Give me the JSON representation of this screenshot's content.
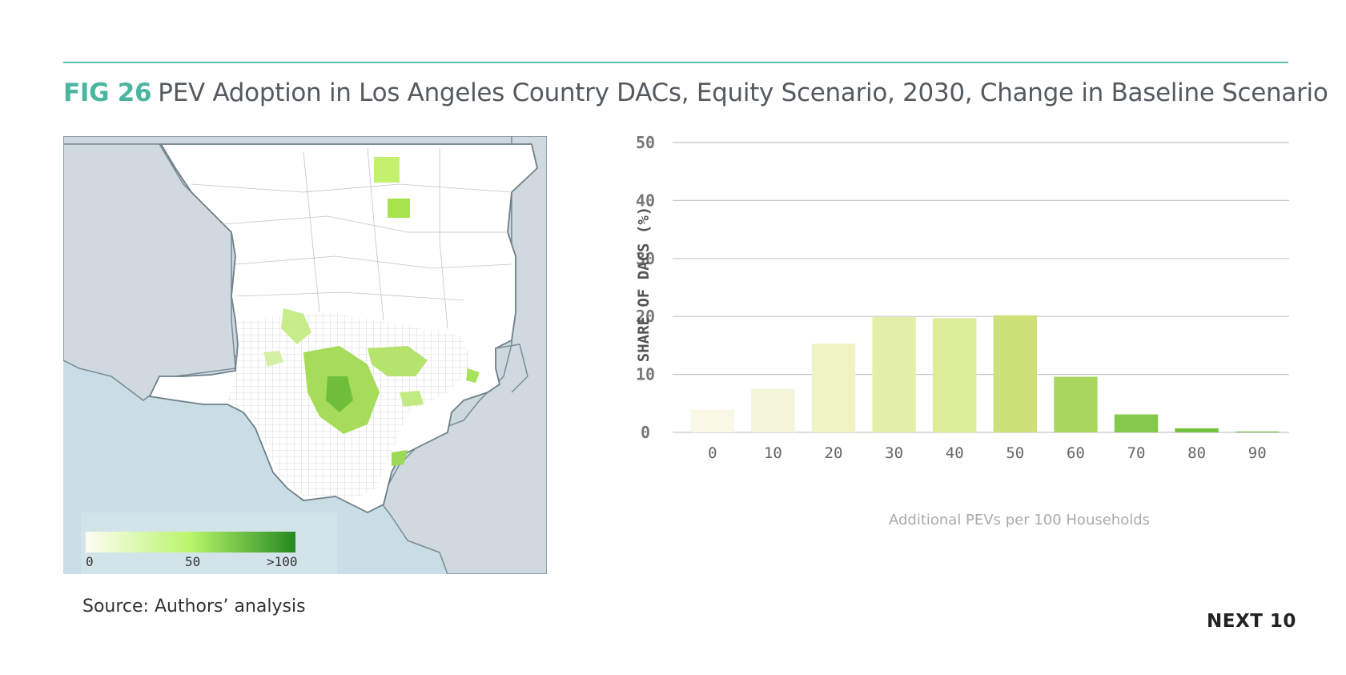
{
  "figure": {
    "label": "FIG 26",
    "title": "PEV Adoption in Los Angeles Country DACs, Equity Scenario, 2030, Change in Baseline Scenario",
    "source": "Source: Authors’ analysis",
    "brand": "NEXT 10"
  },
  "map": {
    "legend": {
      "min_label": "0",
      "mid_label": "50",
      "max_label": ">100",
      "colors": [
        "#fdfdf3",
        "#b9f56a",
        "#248a1f"
      ]
    }
  },
  "colors": {
    "accent": "#4cb5a0",
    "rule": "#5dbfa5",
    "grid": "#c8c8c8"
  },
  "chart_data": {
    "type": "bar",
    "categories": [
      "0",
      "10",
      "20",
      "30",
      "40",
      "50",
      "60",
      "70",
      "80",
      "90"
    ],
    "values": [
      3.9,
      7.5,
      15.3,
      19.9,
      19.7,
      20.2,
      9.6,
      3.1,
      0.7,
      0.15
    ],
    "bar_colors": [
      "#f7f8e5",
      "#f3f6db",
      "#eef4c4",
      "#e3efa9",
      "#dcec98",
      "#cde07a",
      "#a9d65f",
      "#86c84b",
      "#74c041",
      "#6ab83a"
    ],
    "title": "",
    "xlabel": "Additional PEVs per 100 Households",
    "ylabel": "SHARE OF DACS (%)",
    "ylim": [
      0,
      50
    ],
    "yticks": [
      "0",
      "10",
      "20",
      "30",
      "40",
      "50"
    ],
    "grid": true
  }
}
